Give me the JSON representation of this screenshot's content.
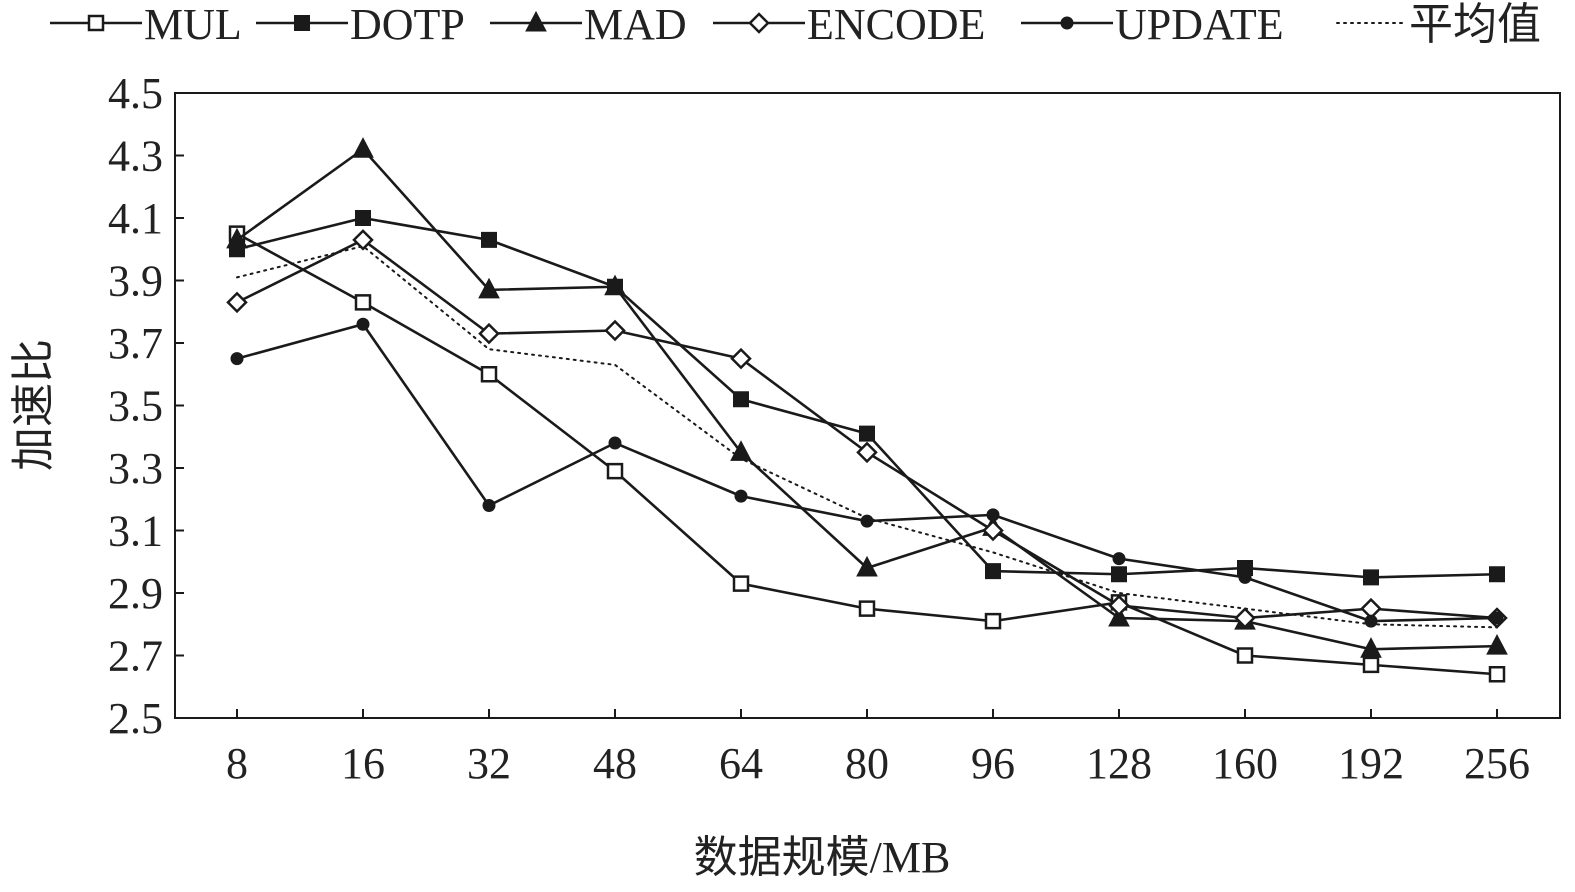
{
  "chart_data": {
    "type": "line",
    "title": "",
    "xlabel": "数据规模/MB",
    "ylabel": "加速比",
    "categories": [
      "8",
      "16",
      "32",
      "48",
      "64",
      "80",
      "96",
      "128",
      "160",
      "192",
      "256"
    ],
    "ylim": [
      2.5,
      4.5
    ],
    "yticks": [
      2.5,
      2.7,
      2.9,
      3.1,
      3.3,
      3.5,
      3.7,
      3.9,
      4.1,
      4.3,
      4.5
    ],
    "ytick_labels": [
      "2.5",
      "2.7",
      "2.9",
      "3.1",
      "3.3",
      "3.5",
      "3.7",
      "3.9",
      "4.1",
      "4.3",
      "4.5"
    ],
    "grid": false,
    "legend_position": "top",
    "series": [
      {
        "name": "MUL",
        "marker": "square-open",
        "line": "solid",
        "color": "#1a1a1a",
        "values": [
          4.05,
          3.83,
          3.6,
          3.29,
          2.93,
          2.85,
          2.81,
          2.87,
          2.7,
          2.67,
          2.64
        ]
      },
      {
        "name": "DOTP",
        "marker": "square-filled",
        "line": "solid",
        "color": "#1a1a1a",
        "values": [
          4.0,
          4.1,
          4.03,
          3.88,
          3.52,
          3.41,
          2.97,
          2.96,
          2.98,
          2.95,
          2.96
        ]
      },
      {
        "name": "MAD",
        "marker": "triangle-filled",
        "line": "solid",
        "color": "#1a1a1a",
        "values": [
          4.03,
          4.32,
          3.87,
          3.88,
          3.35,
          2.98,
          3.11,
          2.82,
          2.81,
          2.72,
          2.73
        ]
      },
      {
        "name": "ENCODE",
        "marker": "diamond-open",
        "line": "solid",
        "color": "#1a1a1a",
        "values": [
          3.83,
          4.03,
          3.73,
          3.74,
          3.65,
          3.35,
          3.1,
          2.86,
          2.82,
          2.85,
          2.82
        ]
      },
      {
        "name": "UPDATE",
        "marker": "circle-filled",
        "line": "solid",
        "color": "#1a1a1a",
        "values": [
          3.65,
          3.76,
          3.18,
          3.38,
          3.21,
          3.13,
          3.15,
          3.01,
          2.95,
          2.81,
          2.82
        ]
      },
      {
        "name": "平均值",
        "marker": "none",
        "line": "dotted",
        "color": "#1a1a1a",
        "values": [
          3.91,
          4.01,
          3.68,
          3.63,
          3.33,
          3.14,
          3.03,
          2.9,
          2.85,
          2.8,
          2.79
        ]
      }
    ]
  }
}
